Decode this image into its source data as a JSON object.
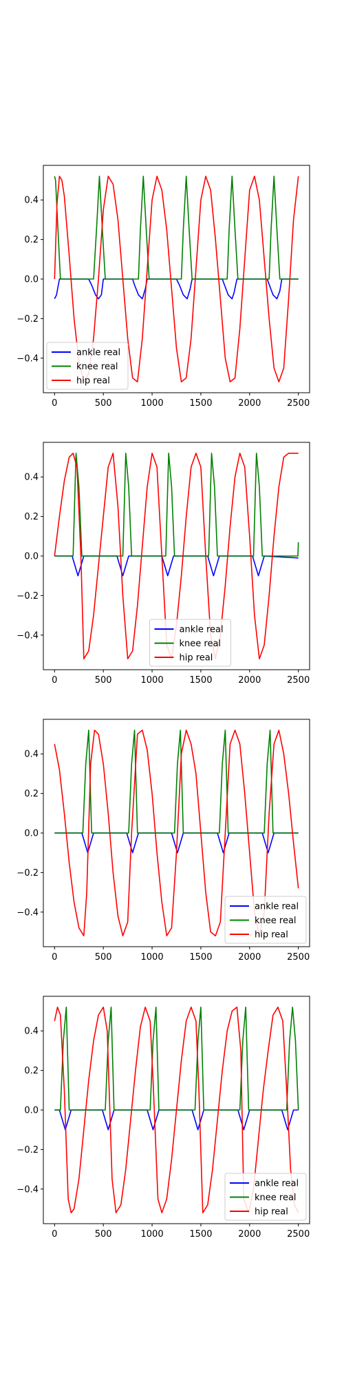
{
  "figure": {
    "colors": {
      "ankle": "#0000ff",
      "knee": "#008000",
      "hip": "#ff0000"
    }
  },
  "chart_data": [
    {
      "type": "line",
      "title": "",
      "xlabel": "",
      "ylabel": "",
      "xlim": [
        -115,
        2615
      ],
      "ylim": [
        -0.575,
        0.575
      ],
      "xticks": [
        0,
        500,
        1000,
        1500,
        2000,
        2500
      ],
      "yticks": [
        -0.4,
        -0.2,
        0.0,
        0.2,
        0.4
      ],
      "legend_position": "lower left",
      "legend": [
        "ankle real",
        "knee real",
        "hip real"
      ],
      "series": [
        {
          "name": "ankle real",
          "color": "#0000ff",
          "x": [
            0,
            20,
            50,
            350,
            380,
            420,
            450,
            480,
            500,
            800,
            820,
            860,
            900,
            930,
            950,
            1250,
            1280,
            1320,
            1360,
            1390,
            1410,
            1720,
            1750,
            1780,
            1820,
            1840,
            1870,
            2180,
            2210,
            2240,
            2280,
            2310,
            2330,
            2500
          ],
          "y": [
            -0.1,
            -0.08,
            0.0,
            0.0,
            -0.03,
            -0.08,
            -0.1,
            -0.08,
            0.0,
            0.0,
            -0.03,
            -0.08,
            -0.1,
            -0.05,
            0.0,
            0.0,
            -0.03,
            -0.08,
            -0.1,
            -0.05,
            0.0,
            0.0,
            -0.04,
            -0.08,
            -0.1,
            -0.07,
            0.0,
            0.0,
            -0.04,
            -0.08,
            -0.1,
            -0.06,
            0.0,
            0.0
          ]
        },
        {
          "name": "knee real",
          "color": "#008000",
          "x": [
            0,
            10,
            40,
            60,
            400,
            430,
            460,
            490,
            520,
            860,
            880,
            910,
            940,
            970,
            1300,
            1320,
            1350,
            1380,
            1410,
            1770,
            1790,
            1820,
            1850,
            1880,
            2200,
            2220,
            2250,
            2280,
            2310,
            2500
          ],
          "y": [
            0.52,
            0.5,
            0.2,
            0.0,
            0.0,
            0.25,
            0.52,
            0.25,
            0.0,
            0.0,
            0.25,
            0.52,
            0.25,
            0.0,
            0.0,
            0.25,
            0.52,
            0.25,
            0.0,
            0.0,
            0.25,
            0.52,
            0.25,
            0.0,
            0.0,
            0.25,
            0.52,
            0.25,
            0.0,
            0.0
          ]
        },
        {
          "name": "hip real",
          "color": "#ff0000",
          "x": [
            0,
            25,
            50,
            75,
            100,
            150,
            200,
            250,
            300,
            350,
            400,
            450,
            500,
            550,
            600,
            650,
            700,
            750,
            800,
            850,
            900,
            950,
            1000,
            1050,
            1100,
            1150,
            1200,
            1250,
            1300,
            1350,
            1400,
            1450,
            1500,
            1550,
            1600,
            1650,
            1700,
            1750,
            1800,
            1850,
            1900,
            1950,
            2000,
            2050,
            2100,
            2150,
            2200,
            2250,
            2300,
            2350,
            2400,
            2450,
            2500
          ],
          "y": [
            0.0,
            0.38,
            0.52,
            0.5,
            0.42,
            0.12,
            -0.2,
            -0.42,
            -0.52,
            -0.48,
            -0.3,
            0.0,
            0.35,
            0.52,
            0.48,
            0.3,
            0.0,
            -0.3,
            -0.5,
            -0.52,
            -0.3,
            0.05,
            0.4,
            0.52,
            0.45,
            0.25,
            -0.05,
            -0.35,
            -0.52,
            -0.5,
            -0.3,
            0.05,
            0.4,
            0.52,
            0.45,
            0.2,
            -0.1,
            -0.4,
            -0.52,
            -0.5,
            -0.25,
            0.1,
            0.45,
            0.52,
            0.4,
            0.1,
            -0.2,
            -0.45,
            -0.52,
            -0.45,
            -0.1,
            0.3,
            0.52
          ]
        }
      ]
    },
    {
      "type": "line",
      "title": "",
      "xlabel": "",
      "ylabel": "",
      "xlim": [
        -115,
        2615
      ],
      "ylim": [
        -0.575,
        0.575
      ],
      "xticks": [
        0,
        500,
        1000,
        1500,
        2000,
        2500
      ],
      "yticks": [
        -0.4,
        -0.2,
        0.0,
        0.2,
        0.4
      ],
      "legend_position": "lower center",
      "legend": [
        "ankle real",
        "knee real",
        "hip real"
      ],
      "series": [
        {
          "name": "ankle real",
          "color": "#0000ff",
          "x": [
            0,
            180,
            210,
            240,
            270,
            300,
            640,
            670,
            700,
            730,
            760,
            1100,
            1130,
            1160,
            1190,
            1220,
            1570,
            1600,
            1630,
            1660,
            1690,
            2030,
            2060,
            2090,
            2120,
            2150,
            2500
          ],
          "y": [
            0.0,
            0.0,
            -0.05,
            -0.1,
            -0.05,
            0.0,
            0.0,
            -0.05,
            -0.1,
            -0.05,
            0.0,
            0.0,
            -0.05,
            -0.1,
            -0.05,
            0.0,
            0.0,
            -0.05,
            -0.1,
            -0.05,
            0.0,
            0.0,
            -0.05,
            -0.1,
            -0.05,
            0.0,
            -0.01
          ]
        },
        {
          "name": "knee real",
          "color": "#008000",
          "x": [
            0,
            190,
            220,
            250,
            280,
            700,
            730,
            760,
            790,
            1140,
            1170,
            1200,
            1230,
            1580,
            1610,
            1640,
            1670,
            2040,
            2070,
            2100,
            2130,
            2495,
            2500
          ],
          "y": [
            0.0,
            0.0,
            0.52,
            0.35,
            0.0,
            0.0,
            0.52,
            0.35,
            0.0,
            0.0,
            0.52,
            0.35,
            0.0,
            0.0,
            0.52,
            0.35,
            0.0,
            0.0,
            0.52,
            0.35,
            0.0,
            0.0,
            0.07
          ]
        },
        {
          "name": "hip real",
          "color": "#ff0000",
          "x": [
            0,
            50,
            100,
            150,
            190,
            230,
            270,
            300,
            350,
            400,
            450,
            500,
            550,
            600,
            650,
            700,
            750,
            800,
            850,
            900,
            950,
            1000,
            1050,
            1100,
            1150,
            1200,
            1250,
            1300,
            1350,
            1400,
            1450,
            1500,
            1550,
            1600,
            1650,
            1700,
            1750,
            1800,
            1850,
            1900,
            1950,
            2000,
            2050,
            2100,
            2150,
            2200,
            2250,
            2300,
            2350,
            2400,
            2450,
            2500
          ],
          "y": [
            0.0,
            0.2,
            0.38,
            0.5,
            0.52,
            0.45,
            0.0,
            -0.52,
            -0.48,
            -0.3,
            -0.05,
            0.2,
            0.45,
            0.52,
            0.25,
            -0.2,
            -0.52,
            -0.48,
            -0.25,
            0.05,
            0.35,
            0.52,
            0.45,
            0.0,
            -0.45,
            -0.52,
            -0.35,
            -0.1,
            0.2,
            0.45,
            0.52,
            0.45,
            0.0,
            -0.4,
            -0.52,
            -0.4,
            -0.15,
            0.15,
            0.4,
            0.52,
            0.45,
            0.1,
            -0.3,
            -0.52,
            -0.45,
            -0.2,
            0.1,
            0.35,
            0.5,
            0.52,
            0.52,
            0.52
          ]
        }
      ]
    },
    {
      "type": "line",
      "title": "",
      "xlabel": "",
      "ylabel": "",
      "xlim": [
        -115,
        2615
      ],
      "ylim": [
        -0.575,
        0.575
      ],
      "xticks": [
        0,
        500,
        1000,
        1500,
        2000,
        2500
      ],
      "yticks": [
        -0.4,
        -0.2,
        0.0,
        0.2,
        0.4
      ],
      "legend_position": "lower right",
      "legend": [
        "ankle real",
        "knee real",
        "hip real"
      ],
      "series": [
        {
          "name": "ankle real",
          "color": "#0000ff",
          "x": [
            0,
            280,
            310,
            340,
            370,
            400,
            740,
            770,
            800,
            830,
            860,
            1200,
            1230,
            1260,
            1290,
            1320,
            1670,
            1700,
            1730,
            1760,
            1790,
            2130,
            2160,
            2190,
            2220,
            2250,
            2500
          ],
          "y": [
            0.0,
            0.0,
            -0.05,
            -0.1,
            -0.05,
            0.0,
            0.0,
            -0.05,
            -0.1,
            -0.05,
            0.0,
            0.0,
            -0.05,
            -0.1,
            -0.05,
            0.0,
            0.0,
            -0.05,
            -0.1,
            -0.05,
            0.0,
            0.0,
            -0.05,
            -0.1,
            -0.05,
            0.0,
            0.0
          ]
        },
        {
          "name": "knee real",
          "color": "#008000",
          "x": [
            0,
            290,
            320,
            350,
            380,
            760,
            790,
            820,
            850,
            1230,
            1260,
            1290,
            1320,
            1690,
            1720,
            1750,
            1780,
            2150,
            2180,
            2210,
            2240,
            2500
          ],
          "y": [
            0.0,
            0.0,
            0.35,
            0.52,
            0.0,
            0.0,
            0.35,
            0.52,
            0.0,
            0.0,
            0.35,
            0.52,
            0.0,
            0.0,
            0.35,
            0.52,
            0.0,
            0.0,
            0.35,
            0.52,
            0.0,
            0.0
          ]
        },
        {
          "name": "hip real",
          "color": "#ff0000",
          "x": [
            0,
            50,
            100,
            150,
            200,
            250,
            300,
            330,
            370,
            410,
            450,
            500,
            550,
            600,
            650,
            700,
            750,
            790,
            850,
            900,
            950,
            1000,
            1050,
            1100,
            1150,
            1200,
            1250,
            1300,
            1350,
            1400,
            1450,
            1500,
            1550,
            1600,
            1650,
            1700,
            1750,
            1800,
            1850,
            1900,
            1950,
            2000,
            2050,
            2100,
            2150,
            2200,
            2250,
            2300,
            2350,
            2400,
            2450,
            2500
          ],
          "y": [
            0.45,
            0.32,
            0.1,
            -0.15,
            -0.35,
            -0.48,
            -0.52,
            -0.3,
            0.35,
            0.52,
            0.5,
            0.35,
            0.1,
            -0.2,
            -0.42,
            -0.52,
            -0.45,
            0.0,
            0.5,
            0.52,
            0.42,
            0.2,
            -0.1,
            -0.35,
            -0.52,
            -0.48,
            -0.1,
            0.4,
            0.52,
            0.45,
            0.3,
            0.0,
            -0.3,
            -0.5,
            -0.52,
            -0.45,
            0.0,
            0.45,
            0.52,
            0.45,
            0.2,
            -0.1,
            -0.4,
            -0.52,
            -0.4,
            0.1,
            0.45,
            0.52,
            0.4,
            0.2,
            -0.05,
            -0.28
          ]
        }
      ]
    },
    {
      "type": "line",
      "title": "",
      "xlabel": "",
      "ylabel": "",
      "xlim": [
        -115,
        2615
      ],
      "ylim": [
        -0.575,
        0.575
      ],
      "xticks": [
        0,
        500,
        1000,
        1500,
        2000,
        2500
      ],
      "yticks": [
        -0.4,
        -0.2,
        0.0,
        0.2,
        0.4
      ],
      "legend_position": "lower right",
      "legend": [
        "ankle real",
        "knee real",
        "hip real"
      ],
      "series": [
        {
          "name": "ankle real",
          "color": "#0000ff",
          "x": [
            0,
            50,
            80,
            110,
            140,
            170,
            490,
            520,
            550,
            580,
            610,
            950,
            980,
            1010,
            1040,
            1070,
            1410,
            1440,
            1470,
            1500,
            1530,
            1880,
            1910,
            1940,
            1970,
            2000,
            2330,
            2360,
            2390,
            2420,
            2450,
            2500
          ],
          "y": [
            0.0,
            0.0,
            -0.05,
            -0.1,
            -0.05,
            0.0,
            0.0,
            -0.05,
            -0.1,
            -0.05,
            0.0,
            0.0,
            -0.05,
            -0.1,
            -0.05,
            0.0,
            0.0,
            -0.05,
            -0.1,
            -0.05,
            0.0,
            0.0,
            -0.05,
            -0.1,
            -0.05,
            0.0,
            0.0,
            -0.05,
            -0.1,
            -0.05,
            0.0,
            0.0
          ]
        },
        {
          "name": "knee real",
          "color": "#008000",
          "x": [
            0,
            60,
            90,
            120,
            150,
            520,
            550,
            580,
            610,
            980,
            1010,
            1040,
            1070,
            1440,
            1470,
            1500,
            1530,
            1900,
            1930,
            1960,
            1990,
            2380,
            2410,
            2440,
            2470,
            2500
          ],
          "y": [
            0.0,
            0.0,
            0.35,
            0.52,
            0.0,
            0.0,
            0.35,
            0.52,
            0.0,
            0.0,
            0.35,
            0.52,
            0.0,
            0.0,
            0.35,
            0.52,
            0.0,
            0.0,
            0.35,
            0.52,
            0.0,
            0.0,
            0.35,
            0.52,
            0.35,
            0.0
          ]
        },
        {
          "name": "hip real",
          "color": "#ff0000",
          "x": [
            0,
            30,
            60,
            100,
            140,
            170,
            200,
            250,
            300,
            350,
            400,
            450,
            500,
            540,
            590,
            630,
            680,
            730,
            780,
            830,
            880,
            930,
            980,
            1010,
            1060,
            1100,
            1150,
            1200,
            1250,
            1300,
            1350,
            1400,
            1450,
            1480,
            1520,
            1570,
            1620,
            1670,
            1720,
            1770,
            1820,
            1870,
            1910,
            1940,
            1990,
            2040,
            2090,
            2140,
            2190,
            2240,
            2290,
            2340,
            2380,
            2420,
            2460,
            2500
          ],
          "y": [
            0.45,
            0.52,
            0.48,
            0.1,
            -0.45,
            -0.52,
            -0.5,
            -0.35,
            -0.1,
            0.15,
            0.35,
            0.48,
            0.52,
            0.4,
            -0.35,
            -0.52,
            -0.48,
            -0.3,
            -0.05,
            0.2,
            0.42,
            0.52,
            0.45,
            0.15,
            -0.45,
            -0.52,
            -0.45,
            -0.25,
            0.0,
            0.25,
            0.45,
            0.52,
            0.45,
            0.1,
            -0.52,
            -0.48,
            -0.3,
            -0.05,
            0.2,
            0.4,
            0.5,
            0.52,
            0.3,
            -0.45,
            -0.52,
            -0.4,
            -0.15,
            0.1,
            0.3,
            0.48,
            0.52,
            0.45,
            0.1,
            -0.3,
            -0.48,
            -0.52
          ]
        }
      ]
    }
  ]
}
